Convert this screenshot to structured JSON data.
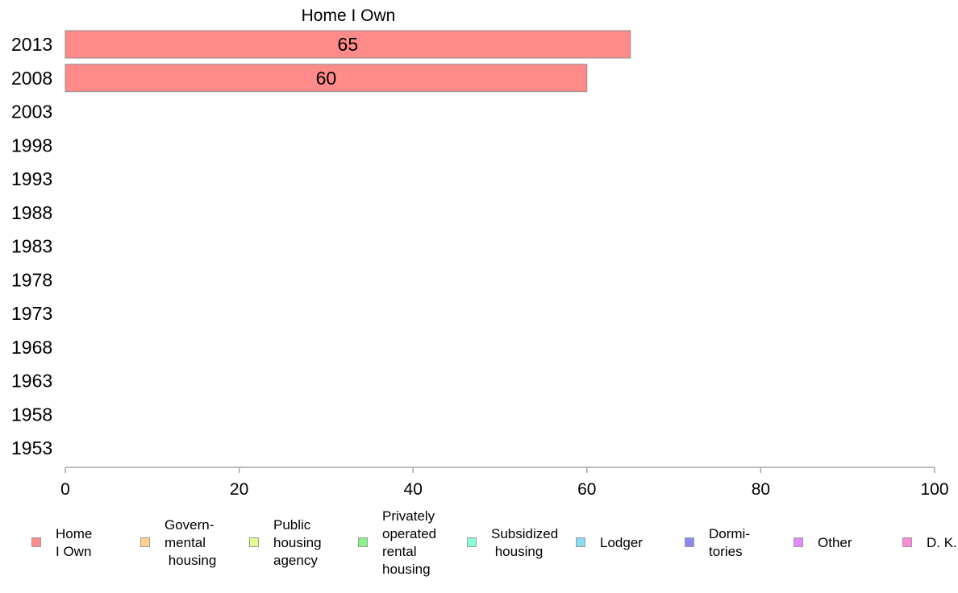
{
  "chart_data": {
    "type": "bar",
    "orientation": "horizontal",
    "title": "Home I Own",
    "categories": [
      "2013",
      "2008",
      "2003",
      "1998",
      "1993",
      "1988",
      "1983",
      "1978",
      "1973",
      "1968",
      "1963",
      "1958",
      "1953"
    ],
    "series": [
      {
        "name": "Home I Own",
        "color": "#ff8a8a",
        "values": [
          65,
          60,
          null,
          null,
          null,
          null,
          null,
          null,
          null,
          null,
          null,
          null,
          null
        ]
      }
    ],
    "data_labels": [
      "65",
      "60",
      "",
      "",
      "",
      "",
      "",
      "",
      "",
      "",
      "",
      "",
      ""
    ],
    "xlim": [
      0,
      100
    ],
    "xticks": [
      "0",
      "20",
      "40",
      "60",
      "80",
      "100"
    ],
    "grid": false,
    "legend_position": "bottom",
    "legend": [
      {
        "label": "Home\nI Own",
        "color": "#ff8a8a"
      },
      {
        "label": "Govern-\nmental\n housing",
        "color": "#ffd28a"
      },
      {
        "label": "Public\nhousing\nagency",
        "color": "#e1ff8a"
      },
      {
        "label": "Privately\noperated\nrental\nhousing",
        "color": "#8af28a"
      },
      {
        "label": "Subsidized\n housing",
        "color": "#8affd8"
      },
      {
        "label": "Lodger",
        "color": "#8adcf2"
      },
      {
        "label": "Dormi-\ntories",
        "color": "#8a8af2"
      },
      {
        "label": "Other",
        "color": "#e08aff"
      },
      {
        "label": "D. K.",
        "color": "#ff8ad6"
      }
    ]
  }
}
